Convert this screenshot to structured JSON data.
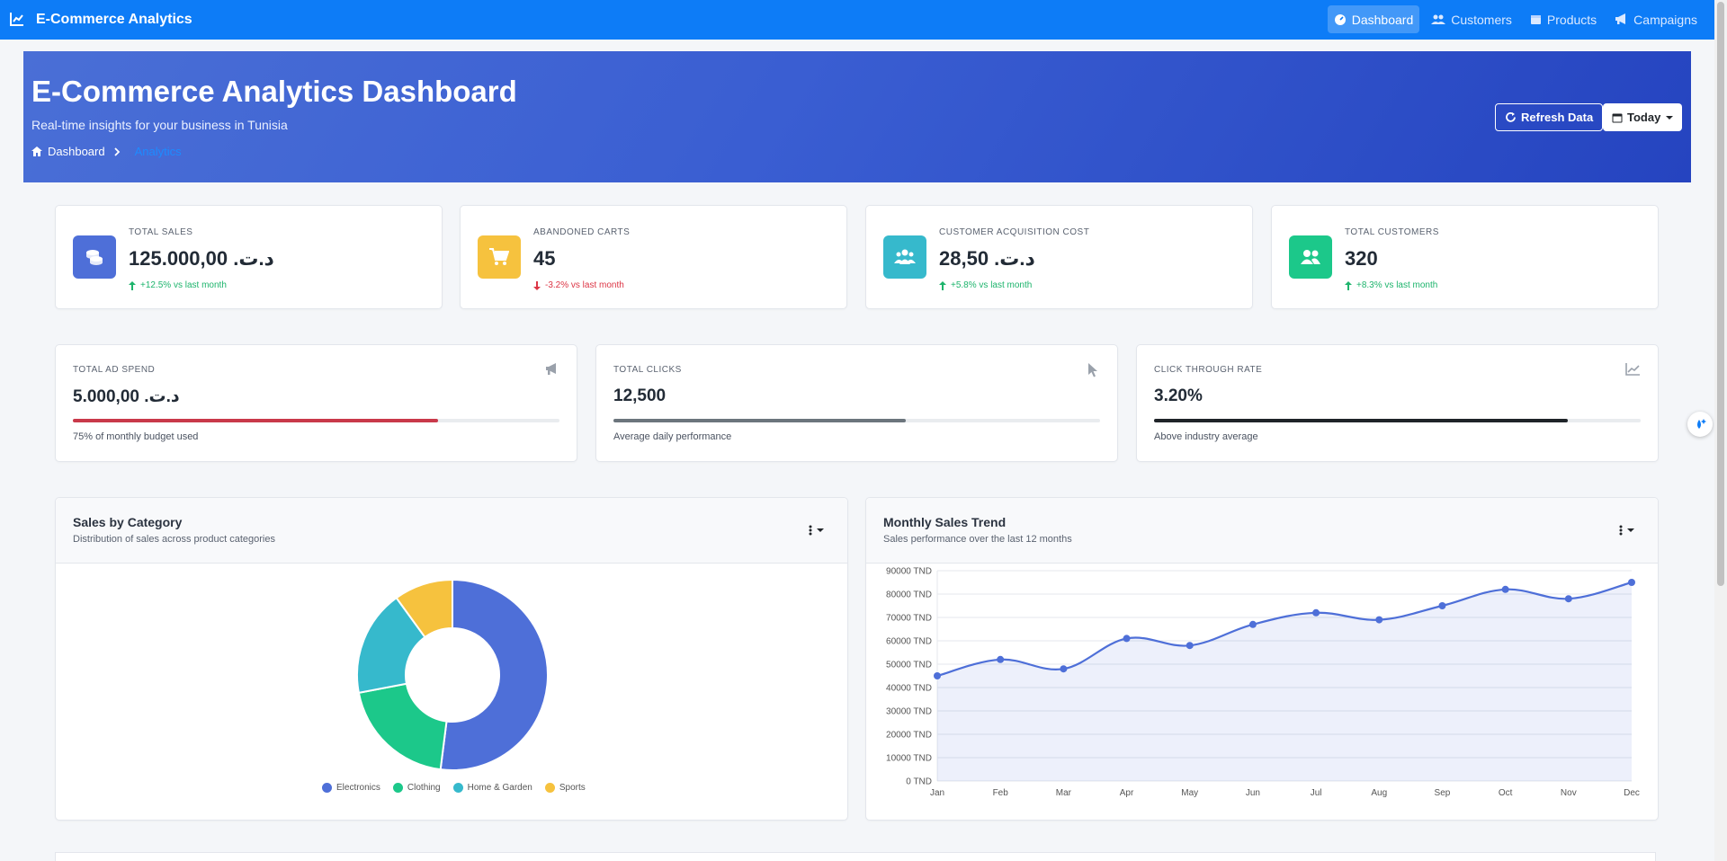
{
  "navbar": {
    "brand": "E-Commerce Analytics",
    "links": [
      {
        "label": "Dashboard",
        "icon": "gauge-icon",
        "active": true
      },
      {
        "label": "Customers",
        "icon": "users-icon",
        "active": false
      },
      {
        "label": "Products",
        "icon": "box-icon",
        "active": false
      },
      {
        "label": "Campaigns",
        "icon": "megaphone-icon",
        "active": false
      }
    ]
  },
  "hero": {
    "title": "E-Commerce Analytics Dashboard",
    "subtitle": "Real-time insights for your business in Tunisia",
    "breadcrumb": [
      "Dashboard",
      "Analytics"
    ],
    "refresh_label": "Refresh Data",
    "date_range_label": "Today"
  },
  "kpis": [
    {
      "label": "TOTAL SALES",
      "value": "د.ت. 125.000,00",
      "trend": "+12.5% vs last month",
      "direction": "up",
      "icon": "coins-icon",
      "color": "#4e6fd8"
    },
    {
      "label": "ABANDONED CARTS",
      "value": "45",
      "trend": "-3.2% vs last month",
      "direction": "down",
      "icon": "cart-icon",
      "color": "#f6c23e"
    },
    {
      "label": "CUSTOMER ACQUISITION COST",
      "value": "د.ت. 28,50",
      "trend": "+5.8% vs last month",
      "direction": "up",
      "icon": "users-icon",
      "color": "#36b9cc"
    },
    {
      "label": "TOTAL CUSTOMERS",
      "value": "320",
      "trend": "+8.3% vs last month",
      "direction": "up",
      "icon": "user-group-icon",
      "color": "#1cc88a"
    }
  ],
  "metrics": [
    {
      "label": "TOTAL AD SPEND",
      "value": "د.ت. 5.000,00",
      "progress": 0.75,
      "note": "75% of monthly budget used",
      "icon": "megaphone-icon",
      "bar_color": "#c9394a"
    },
    {
      "label": "TOTAL CLICKS",
      "value": "12,500",
      "progress": 0.6,
      "note": "Average daily performance",
      "icon": "pointer-icon",
      "bar_color": "#6c757d"
    },
    {
      "label": "CLICK THROUGH RATE",
      "value": "3.20%",
      "progress": 0.85,
      "note": "Above industry average",
      "icon": "line-chart-icon",
      "bar_color": "#1f2429"
    }
  ],
  "charts": {
    "category": {
      "title": "Sales by Category",
      "subtitle": "Distribution of sales across product categories"
    },
    "trend": {
      "title": "Monthly Sales Trend",
      "subtitle": "Sales performance over the last 12 months"
    }
  },
  "chart_data": [
    {
      "type": "pie",
      "title": "Sales by Category",
      "categories": [
        "Electronics",
        "Clothing",
        "Home & Garden",
        "Sports"
      ],
      "values": [
        52,
        20,
        18,
        10
      ],
      "colors": [
        "#4e6fd8",
        "#1cc88a",
        "#36b9cc",
        "#f6c23e"
      ],
      "legend": "bottom"
    },
    {
      "type": "area",
      "title": "Monthly Sales Trend",
      "categories": [
        "Jan",
        "Feb",
        "Mar",
        "Apr",
        "May",
        "Jun",
        "Jul",
        "Aug",
        "Sep",
        "Oct",
        "Nov",
        "Dec"
      ],
      "series": [
        {
          "values": [
            45000,
            52000,
            48000,
            61000,
            58000,
            67000,
            72000,
            69000,
            75000,
            82000,
            78000,
            85000
          ]
        }
      ],
      "ylim": [
        0,
        90000
      ],
      "yticks": [
        0,
        10000,
        20000,
        30000,
        40000,
        50000,
        60000,
        70000,
        80000,
        90000
      ],
      "ytick_suffix": " TND",
      "color": "#4e6fd8",
      "grid": true
    }
  ]
}
